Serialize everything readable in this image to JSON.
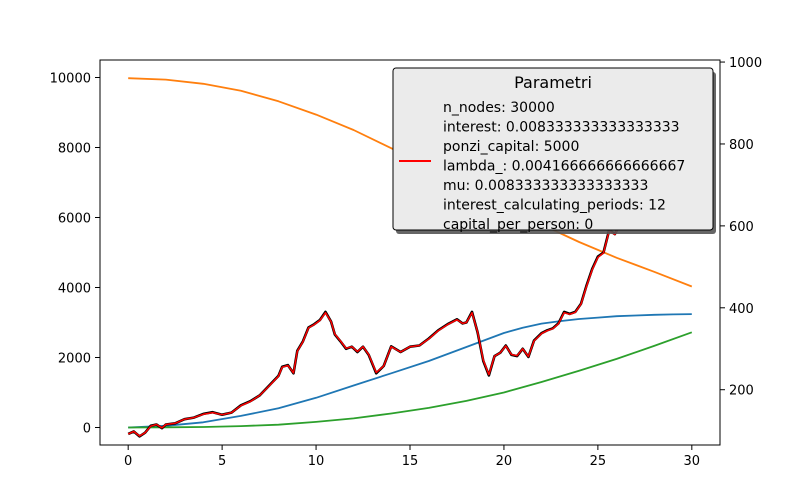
{
  "chart_data": {
    "type": "line",
    "title": "",
    "xlabel": "",
    "ylabel": "",
    "y2label": "",
    "xlim": [
      -1.5,
      31.5
    ],
    "ylim": [
      -500,
      10500
    ],
    "y2lim": [
      65,
      1005
    ],
    "x_ticks": [
      0,
      5,
      10,
      15,
      20,
      25,
      30
    ],
    "y_ticks": [
      0,
      2000,
      4000,
      6000,
      8000,
      10000
    ],
    "y2_ticks": [
      200,
      400,
      600,
      800,
      1000
    ],
    "grid": false,
    "legend": {
      "title": "Parametri",
      "placement": "top-right",
      "entries": [
        "n_nodes: 30000",
        "interest: 0.008333333333333333",
        "ponzi_capital: 5000",
        "lambda_: 0.004166666666666667",
        "mu: 0.008333333333333333",
        "interest_calculating_periods: 12",
        "capital_per_person: 0"
      ],
      "marker_entry_index": 3,
      "marker_color": "#ff0000"
    },
    "colors": {
      "blue": "#1f77b4",
      "orange": "#ff7f0e",
      "green": "#2ca02c",
      "black": "#000000",
      "red": "#ff0000"
    },
    "series": [
      {
        "color": "blue",
        "axis": "left",
        "x": [
          0,
          2,
          4,
          6,
          8,
          10,
          12,
          14,
          16,
          18,
          20,
          21,
          22,
          23,
          24,
          25,
          26,
          27,
          28,
          29,
          30
        ],
        "y": [
          0,
          50,
          150,
          330,
          550,
          850,
          1200,
          1550,
          1900,
          2300,
          2700,
          2850,
          2970,
          3040,
          3100,
          3140,
          3180,
          3200,
          3220,
          3230,
          3240
        ]
      },
      {
        "color": "orange",
        "axis": "left",
        "x": [
          0,
          2,
          4,
          6,
          8,
          10,
          12,
          14,
          16,
          18,
          20,
          22,
          24,
          26,
          28,
          30
        ],
        "y": [
          9980,
          9940,
          9820,
          9620,
          9320,
          8940,
          8500,
          7980,
          7450,
          6900,
          6350,
          5800,
          5300,
          4850,
          4450,
          4030
        ]
      },
      {
        "color": "green",
        "axis": "left",
        "x": [
          0,
          2,
          4,
          6,
          8,
          10,
          12,
          14,
          16,
          18,
          20,
          22,
          24,
          26,
          28,
          30
        ],
        "y": [
          0,
          5,
          15,
          40,
          80,
          160,
          260,
          400,
          560,
          760,
          1000,
          1300,
          1620,
          1960,
          2330,
          2720
        ]
      },
      {
        "color": "black",
        "axis": "right",
        "width": 2.6,
        "x": [
          0,
          0.3,
          0.6,
          0.9,
          1.2,
          1.5,
          1.8,
          2.0,
          2.5,
          3.0,
          3.5,
          4.0,
          4.5,
          5.0,
          5.5,
          6.0,
          6.5,
          7.0,
          7.5,
          8.0,
          8.2,
          8.5,
          8.8,
          9.0,
          9.3,
          9.6,
          9.9,
          10.2,
          10.5,
          10.8,
          11.0,
          11.3,
          11.6,
          11.9,
          12.2,
          12.5,
          12.8,
          13.2,
          13.6,
          14.0,
          14.5,
          15.0,
          15.5,
          16.0,
          16.5,
          17.0,
          17.5,
          17.8,
          18.0,
          18.3,
          18.6,
          18.9,
          19.2,
          19.5,
          19.8,
          20.1,
          20.4,
          20.7,
          21.0,
          21.3,
          21.6,
          22.0,
          22.3,
          22.6,
          22.9,
          23.2,
          23.5,
          23.8,
          24.1,
          24.4,
          24.7,
          25.0,
          25.3,
          25.6,
          25.9,
          26.2,
          26.5,
          26.8,
          27.1,
          27.4,
          27.7,
          28.0,
          28.3,
          28.6,
          28.9,
          29.2,
          29.5,
          29.8,
          30.0
        ],
        "y": [
          92,
          98,
          86,
          95,
          112,
          115,
          106,
          115,
          118,
          128,
          132,
          141,
          145,
          139,
          144,
          162,
          172,
          186,
          210,
          234,
          256,
          260,
          240,
          295,
          318,
          352,
          360,
          370,
          390,
          366,
          335,
          318,
          300,
          305,
          292,
          305,
          285,
          240,
          258,
          306,
          292,
          305,
          308,
          325,
          345,
          360,
          372,
          362,
          364,
          390,
          340,
          270,
          235,
          282,
          290,
          308,
          285,
          282,
          300,
          280,
          320,
          338,
          345,
          350,
          362,
          390,
          385,
          390,
          410,
          455,
          495,
          525,
          535,
          590,
          580,
          605,
          640,
          665,
          680,
          705,
          740,
          780,
          820,
          830,
          870,
          880,
          905,
          950,
          980
        ]
      },
      {
        "color": "red",
        "axis": "right",
        "width": 1.5,
        "x": [
          0,
          0.3,
          0.6,
          0.9,
          1.2,
          1.5,
          1.8,
          2.0,
          2.5,
          3.0,
          3.5,
          4.0,
          4.5,
          5.0,
          5.5,
          6.0,
          6.5,
          7.0,
          7.5,
          8.0,
          8.2,
          8.5,
          8.8,
          9.0,
          9.3,
          9.6,
          9.9,
          10.2,
          10.5,
          10.8,
          11.0,
          11.3,
          11.6,
          11.9,
          12.2,
          12.5,
          12.8,
          13.2,
          13.6,
          14.0,
          14.5,
          15.0,
          15.5,
          16.0,
          16.5,
          17.0,
          17.5,
          17.8,
          18.0,
          18.3,
          18.6,
          18.9,
          19.2,
          19.5,
          19.8,
          20.1,
          20.4,
          20.7,
          21.0,
          21.3,
          21.6,
          22.0,
          22.3,
          22.6,
          22.9,
          23.2,
          23.5,
          23.8,
          24.1,
          24.4,
          24.7,
          25.0,
          25.3,
          25.6,
          25.9,
          26.2,
          26.5,
          26.8,
          27.1,
          27.4,
          27.7,
          28.0,
          28.3,
          28.6,
          28.9,
          29.2,
          29.5,
          29.8,
          30.0
        ],
        "y": [
          92,
          98,
          87,
          95,
          111,
          115,
          107,
          115,
          118,
          128,
          132,
          140,
          144,
          139,
          144,
          161,
          171,
          186,
          209,
          233,
          255,
          259,
          241,
          294,
          317,
          351,
          359,
          369,
          388,
          366,
          336,
          319,
          301,
          305,
          293,
          305,
          286,
          242,
          258,
          305,
          292,
          305,
          308,
          324,
          344,
          359,
          371,
          362,
          364,
          388,
          341,
          272,
          237,
          282,
          290,
          307,
          286,
          283,
          300,
          281,
          319,
          337,
          344,
          349,
          361,
          388,
          384,
          389,
          409,
          453,
          493,
          523,
          534,
          588,
          579,
          604,
          638,
          663,
          678,
          703,
          738,
          778,
          818,
          828,
          868,
          878,
          903,
          948,
          978
        ]
      }
    ]
  }
}
